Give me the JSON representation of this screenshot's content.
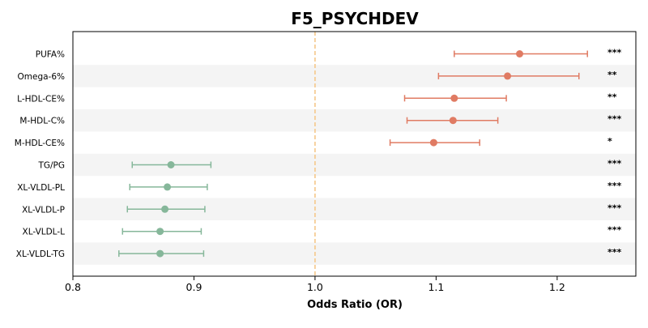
{
  "chart_data": {
    "type": "forest",
    "title": "F5_PSYCHDEV",
    "xlabel": "Odds Ratio (OR)",
    "xlim": [
      0.8,
      1.265
    ],
    "xticks": [
      "0.8",
      "0.9",
      "1.0",
      "1.1",
      "1.2"
    ],
    "reference_line": 1.0,
    "colors": {
      "positive": "#e07b63",
      "negative": "#86b79a",
      "reference": "#f5c88a",
      "band": "#f4f4f4"
    },
    "rows": [
      {
        "label": "PUFA%",
        "or": 1.169,
        "ci_low": 1.115,
        "ci_high": 1.225,
        "sig": "***",
        "direction": "positive"
      },
      {
        "label": "Omega-6%",
        "or": 1.159,
        "ci_low": 1.102,
        "ci_high": 1.218,
        "sig": "**",
        "direction": "positive"
      },
      {
        "label": "L-HDL-CE%",
        "or": 1.115,
        "ci_low": 1.074,
        "ci_high": 1.158,
        "sig": "**",
        "direction": "positive"
      },
      {
        "label": "M-HDL-C%",
        "or": 1.114,
        "ci_low": 1.076,
        "ci_high": 1.151,
        "sig": "***",
        "direction": "positive"
      },
      {
        "label": "M-HDL-CE%",
        "or": 1.098,
        "ci_low": 1.062,
        "ci_high": 1.136,
        "sig": "*",
        "direction": "positive"
      },
      {
        "label": "TG/PG",
        "or": 0.881,
        "ci_low": 0.849,
        "ci_high": 0.914,
        "sig": "***",
        "direction": "negative"
      },
      {
        "label": "XL-VLDL-PL",
        "or": 0.878,
        "ci_low": 0.847,
        "ci_high": 0.911,
        "sig": "***",
        "direction": "negative"
      },
      {
        "label": "XL-VLDL-P",
        "or": 0.876,
        "ci_low": 0.845,
        "ci_high": 0.909,
        "sig": "***",
        "direction": "negative"
      },
      {
        "label": "XL-VLDL-L",
        "or": 0.872,
        "ci_low": 0.841,
        "ci_high": 0.906,
        "sig": "***",
        "direction": "negative"
      },
      {
        "label": "XL-VLDL-TG",
        "or": 0.872,
        "ci_low": 0.838,
        "ci_high": 0.908,
        "sig": "***",
        "direction": "negative"
      }
    ]
  }
}
